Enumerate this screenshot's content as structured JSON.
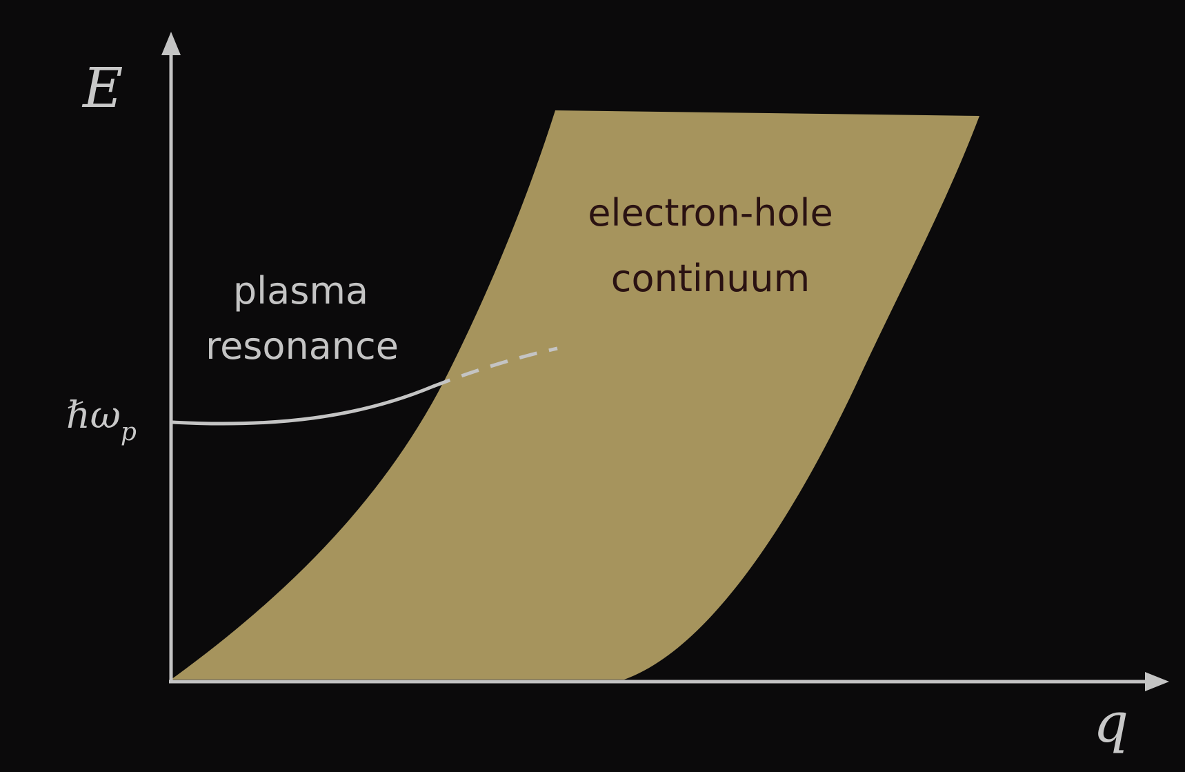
{
  "diagram": {
    "axes": {
      "y_label": "E",
      "x_label": "q",
      "y_tick_label": {
        "base": "ℏω",
        "subscript": "p"
      }
    },
    "regions": {
      "continuum": {
        "line1": "electron-hole",
        "line2": "continuum"
      }
    },
    "curves": {
      "plasmon": {
        "line1": "plasma",
        "line2": "resonance"
      }
    },
    "colors": {
      "background": "#0b0a0b",
      "axis": "#c4c4c4",
      "continuum_fill": "#a6945d",
      "continuum_text": "#2a1212",
      "plasmon_curve": "#c4c4c4",
      "plasmon_text": "#c4c4c4"
    }
  }
}
